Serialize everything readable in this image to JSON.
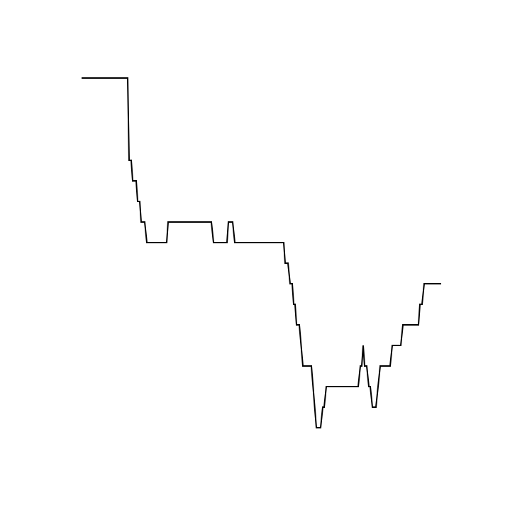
{
  "chart_data": {
    "type": "line",
    "color": "#000000",
    "x": [
      0,
      65,
      67,
      70,
      72,
      77,
      79,
      82,
      84,
      89,
      92,
      120,
      122,
      183,
      186,
      205,
      207,
      213,
      216,
      285,
      287,
      291,
      294,
      297,
      299,
      301,
      303,
      307,
      312,
      324,
      331,
      337,
      340,
      342,
      345,
      390,
      393,
      395,
      397,
      399,
      402,
      405,
      407,
      410,
      415,
      418,
      421,
      435,
      438,
      450,
      453,
      475,
      477,
      480,
      483,
      507
    ],
    "values": [
      17,
      17,
      13,
      13,
      12,
      12,
      11,
      11,
      10,
      10,
      9,
      9,
      10,
      10,
      9,
      9,
      10,
      10,
      9,
      9,
      8,
      8,
      7,
      7,
      6,
      6,
      5,
      5,
      3,
      3,
      0,
      0,
      1,
      1,
      2,
      2,
      3,
      3,
      4,
      3,
      3,
      2,
      2,
      1,
      1,
      2,
      3,
      3,
      4,
      4,
      5,
      5,
      6,
      6,
      7,
      7
    ],
    "xlim": [
      0,
      507
    ],
    "ylim": [
      0,
      17
    ]
  }
}
